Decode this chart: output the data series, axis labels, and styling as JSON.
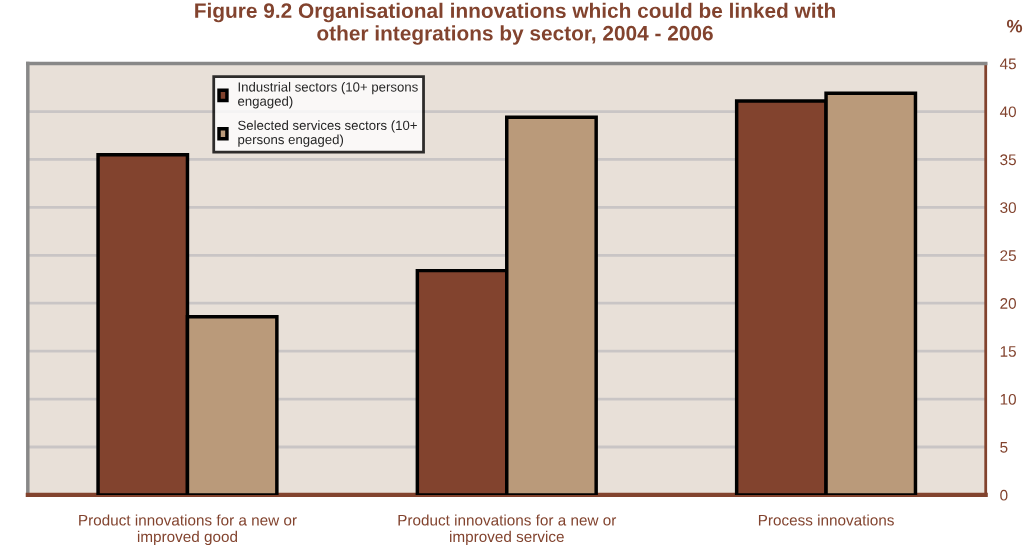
{
  "chart_data": {
    "type": "bar",
    "title": "Figure 9.2 Organisational innovations which could be linked with\nother integrations by sector, 2004 - 2006",
    "ylabel": "%",
    "categories": [
      "Product innovations for a new or\nimproved good",
      "Product innovations for a new or\nimproved service",
      "Process innovations"
    ],
    "series": [
      {
        "name": "Industrial sectors (10+ persons\nengaged)",
        "color": "#82432e",
        "values": [
          35.5,
          23.4,
          41.1
        ]
      },
      {
        "name": "Selected services sectors (10+\npersons engaged)",
        "color": "#ba9a7a",
        "values": [
          18.6,
          39.4,
          41.9
        ]
      }
    ],
    "ylim": [
      0,
      45
    ],
    "yticks": [
      0,
      5,
      10,
      15,
      20,
      25,
      30,
      35,
      40,
      45
    ],
    "grid": "y",
    "legend": "top"
  }
}
